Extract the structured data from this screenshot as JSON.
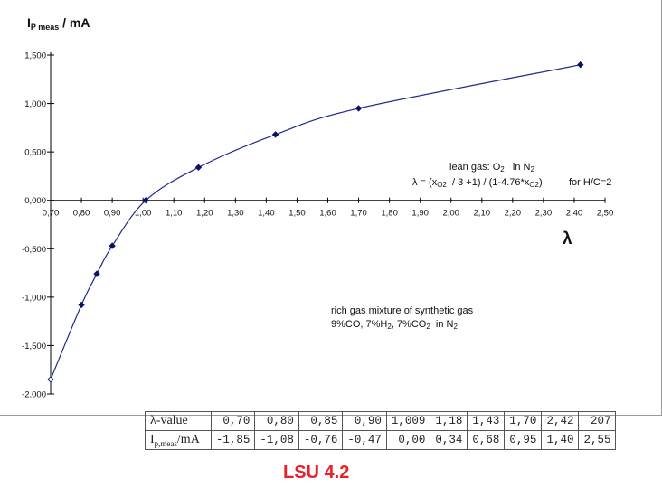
{
  "chart_data": {
    "type": "line",
    "ylabel": {
      "main": "I",
      "sub": "P meas",
      "rest": " / mA"
    },
    "xlabel": "λ",
    "xlim": [
      0.7,
      2.5
    ],
    "ylim": [
      -2.0,
      1.5
    ],
    "x_ticks": [
      "0,70",
      "0,80",
      "0,90",
      "1,00",
      "1,10",
      "1,20",
      "1,30",
      "1,40",
      "1,50",
      "1,60",
      "1,70",
      "1,80",
      "1,90",
      "2,00",
      "2,10",
      "2,20",
      "2,30",
      "2,40",
      "2,50"
    ],
    "y_ticks": [
      "1,500",
      "1,000",
      "0,500",
      "0,000",
      "-0,500",
      "-1,000",
      "-1,500",
      "-2,000"
    ],
    "series": [
      {
        "points": [
          {
            "x": 0.7,
            "y": -1.85
          },
          {
            "x": 0.8,
            "y": -1.08
          },
          {
            "x": 0.85,
            "y": -0.76
          },
          {
            "x": 0.9,
            "y": -0.47
          },
          {
            "x": 1.009,
            "y": 0.0
          },
          {
            "x": 1.18,
            "y": 0.34
          },
          {
            "x": 1.43,
            "y": 0.68
          },
          {
            "x": 1.7,
            "y": 0.95
          },
          {
            "x": 2.42,
            "y": 1.4
          }
        ]
      }
    ],
    "annotations": {
      "lean_line1": {
        "a": "lean gas: O",
        "b": "2",
        "c": "   in N",
        "d": "2"
      },
      "lean_line2": {
        "a": "λ = (x",
        "b": "O2",
        "c": "  / 3 +1) / (1-4.76*x",
        "d": "O2",
        "e": ")"
      },
      "lean_hc": "for H/C=2",
      "rich_line1": "rich gas mixture of  synthetic gas",
      "rich_line2": {
        "a": "9%CO, 7%H",
        "b": "2",
        "c": ", 7%CO",
        "d": "2",
        "e": "  in N",
        "f": "2"
      }
    },
    "grid": false,
    "colors": {
      "line": "#1f2a8a",
      "marker": "#0a1466"
    }
  },
  "table": {
    "row1": {
      "label": "λ-value",
      "values": [
        "0,70",
        "0,80",
        "0,85",
        "0,90",
        "1,009",
        "1,18",
        "1,43",
        "1,70",
        "2,42",
        "207"
      ]
    },
    "row2": {
      "label_main": "I",
      "label_sub": "p,meas",
      "label_rest": "/mA",
      "values": [
        "-1,85",
        "-1,08",
        "-0,76",
        "-0,47",
        "0,00",
        "0,34",
        "0,68",
        "0,95",
        "1,40",
        "2,55"
      ]
    }
  },
  "brand": "LSU 4.2"
}
